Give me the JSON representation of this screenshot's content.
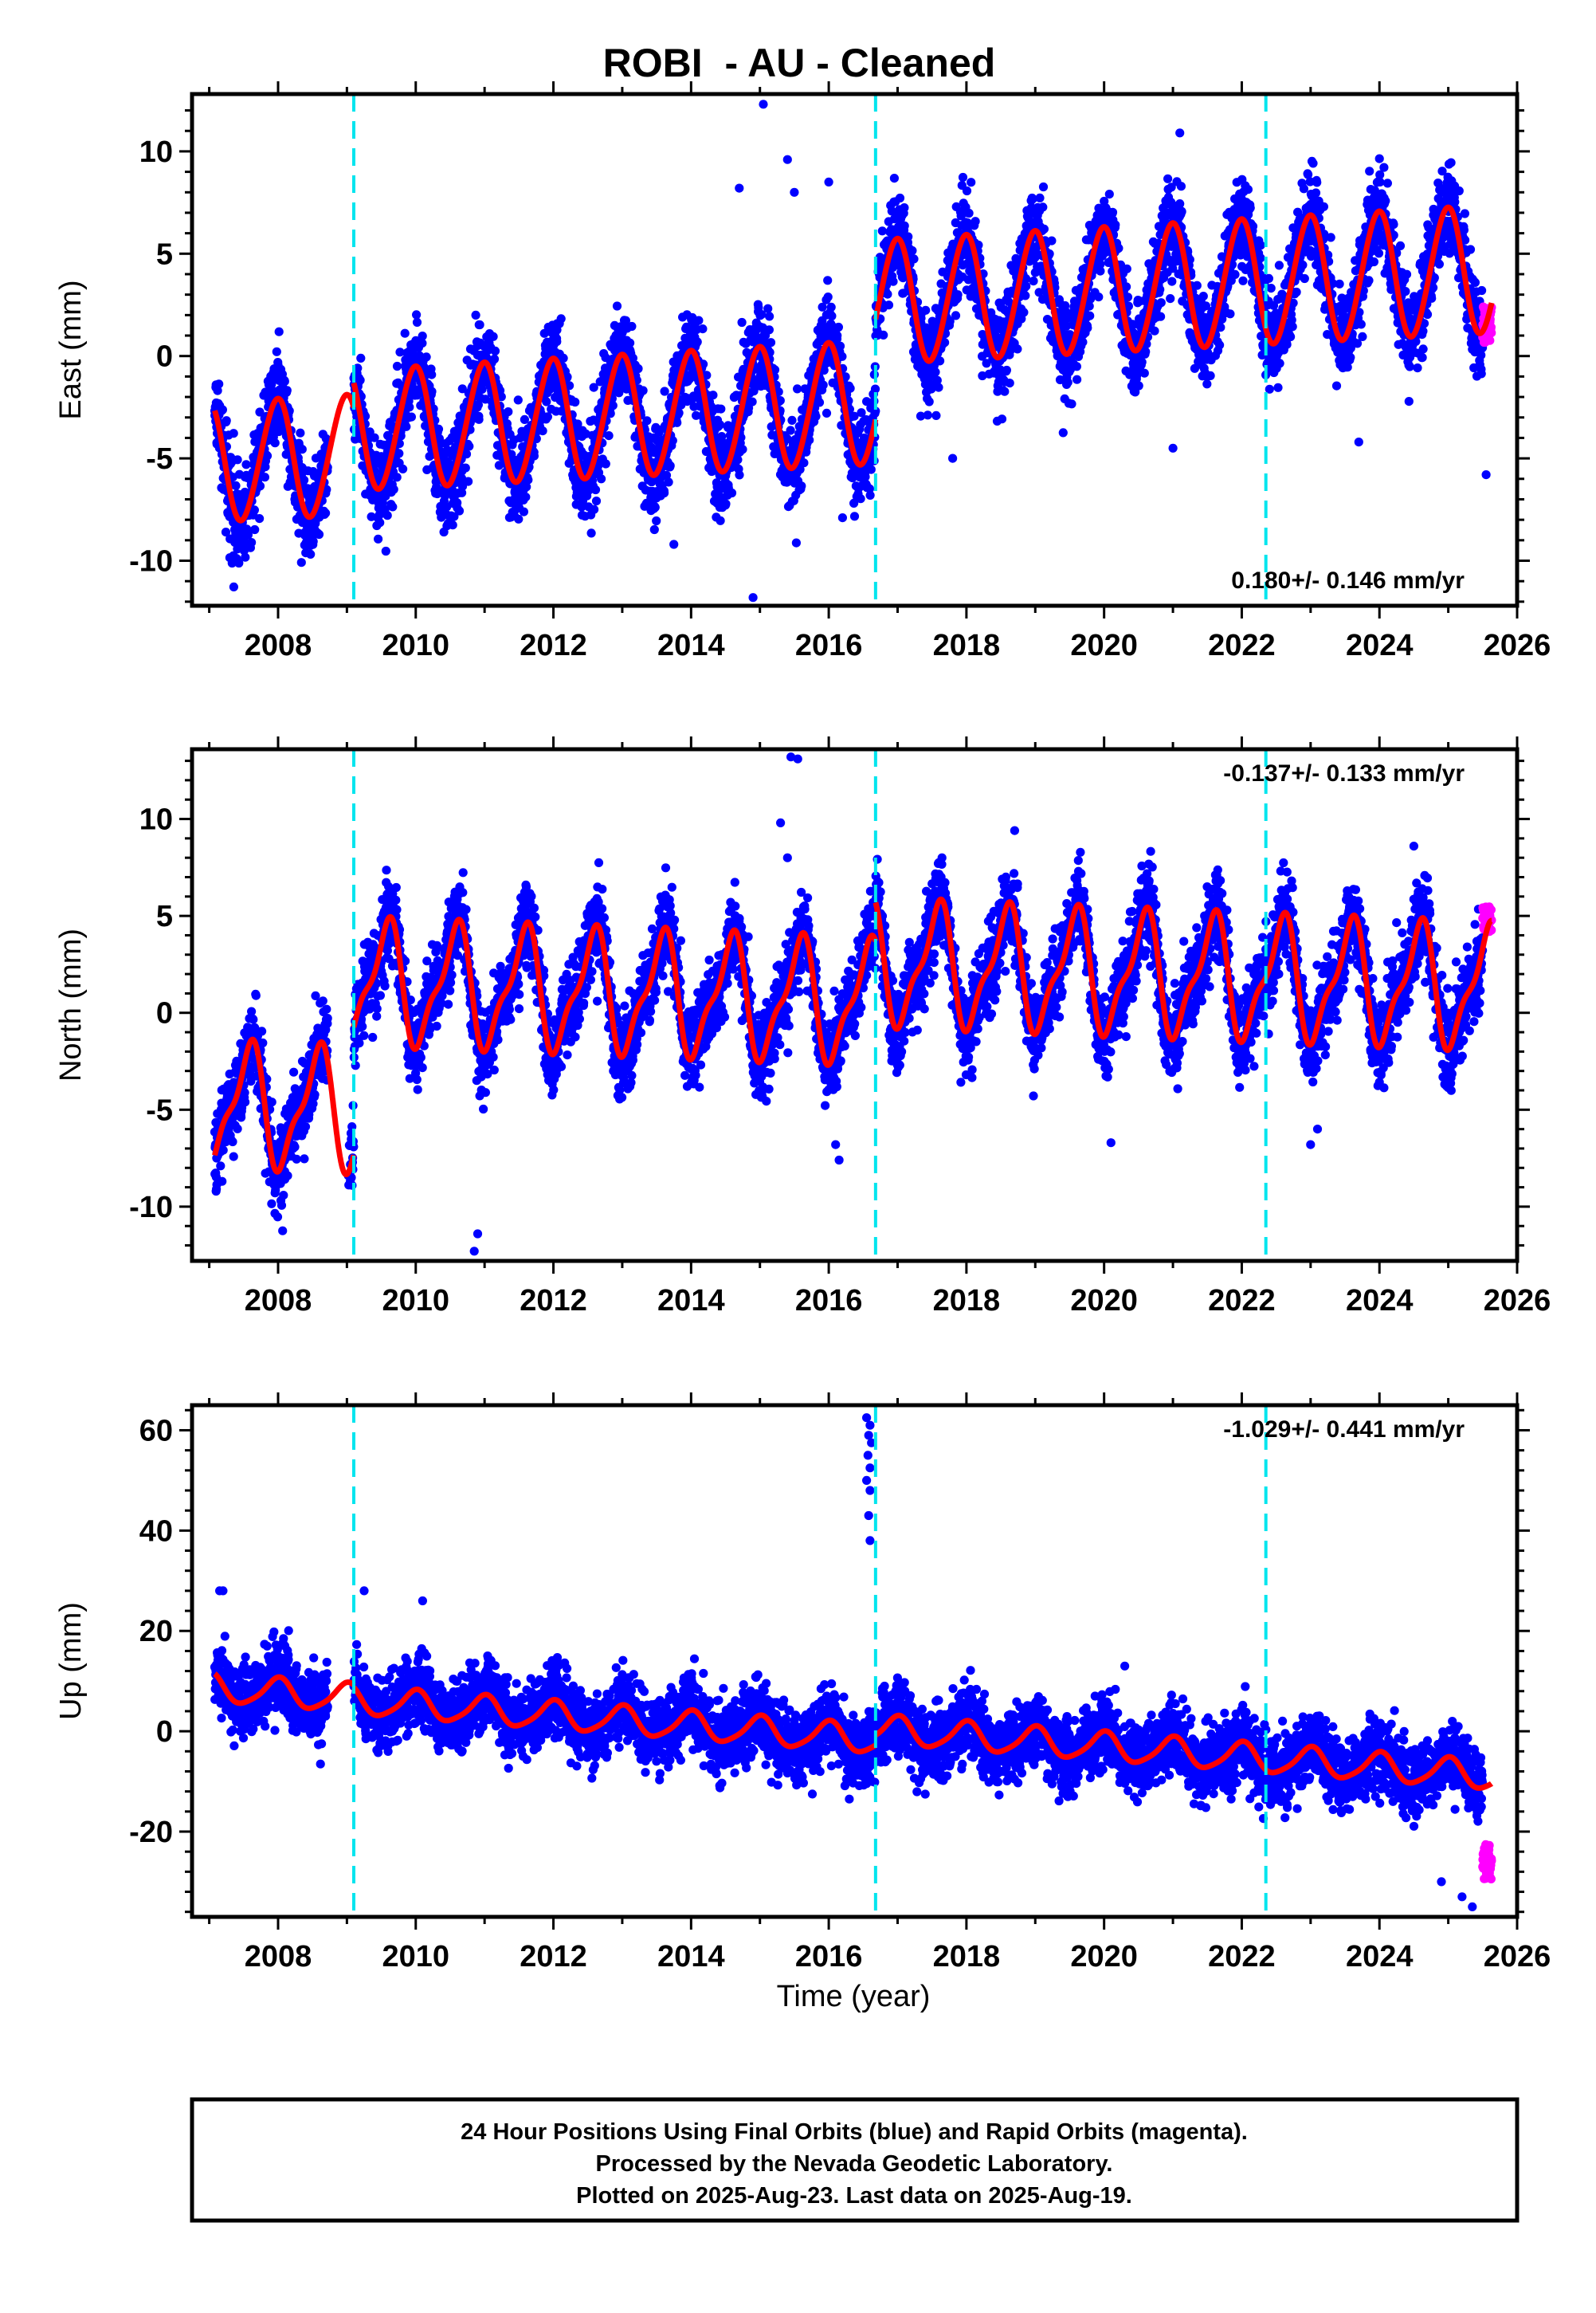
{
  "figure": {
    "title": "ROBI  - AU - Cleaned",
    "xlabel": "Time (year)",
    "footer_lines": [
      "24 Hour Positions Using Final Orbits (blue) and Rapid Orbits (magenta).",
      "Processed by the Nevada Geodetic Laboratory.",
      "Plotted on 2025-Aug-23. Last data on 2025-Aug-19."
    ]
  },
  "colors": {
    "final_orbits": "#0000ff",
    "rapid_orbits": "#ff00ff",
    "model_fit": "#ff0000",
    "offset_lines": "#00e5ee",
    "frame": "#000000"
  },
  "chart_data": [
    {
      "type": "scatter",
      "component": "East",
      "ylabel": "East (mm)",
      "xlim": [
        2006.75,
        2026.0
      ],
      "ylim": [
        -12.2,
        12.8
      ],
      "xticks": [
        2008,
        2010,
        2012,
        2014,
        2016,
        2018,
        2020,
        2022,
        2024,
        2026
      ],
      "yticks": [
        -10,
        -5,
        0,
        5,
        10
      ],
      "rate_text": "0.180+/- 0.146 mm/yr",
      "rate_position": "bottom-right",
      "offset_epochs": [
        2009.1,
        2016.68,
        2022.35
      ],
      "data_span": [
        2007.08,
        2025.5
      ],
      "gap": [
        2008.72,
        2009.1
      ],
      "model": {
        "segments": [
          {
            "from": 2007.08,
            "to": 2009.1,
            "offset": -3.6
          },
          {
            "from": 2009.1,
            "to": 2016.68,
            "offset": -2.4
          },
          {
            "from": 2016.68,
            "to": 2025.63,
            "offset": 2.5
          }
        ],
        "trend_mm_per_yr": 0.18,
        "reference_year": 2016.0,
        "annual_amplitude": 3.0,
        "annual_phase": 1.7,
        "semiannual_amplitude": 0.2,
        "semiannual_phase": 0.4
      },
      "scatter_sd": 1.1,
      "annual_amplitude_ramp": [
        2.9,
        3.1
      ],
      "rapid_orbits": {
        "from": 2025.5,
        "to": 2025.63,
        "center": 1.5,
        "spread": 1.8
      },
      "outliers": [
        [
          2015.05,
          12.3
        ],
        [
          2015.4,
          9.6
        ],
        [
          2014.7,
          8.2
        ],
        [
          2015.5,
          8.0
        ],
        [
          2021.1,
          10.9
        ],
        [
          2016.0,
          8.5
        ],
        [
          2014.9,
          -11.8
        ],
        [
          2013.75,
          -9.2
        ],
        [
          2016.2,
          -7.9
        ],
        [
          2007.5,
          -9.3
        ],
        [
          2025.55,
          -5.8
        ],
        [
          2021.0,
          -4.5
        ],
        [
          2017.8,
          -5.0
        ],
        [
          2023.7,
          -4.2
        ]
      ]
    },
    {
      "type": "scatter",
      "component": "North",
      "ylabel": "North (mm)",
      "xlim": [
        2006.75,
        2026.0
      ],
      "ylim": [
        -12.8,
        13.6
      ],
      "xticks": [
        2008,
        2010,
        2012,
        2014,
        2016,
        2018,
        2020,
        2022,
        2024,
        2026
      ],
      "yticks": [
        -10,
        -5,
        0,
        5,
        10
      ],
      "rate_text": "-0.137+/- 0.133 mm/yr",
      "rate_position": "top-right",
      "offset_epochs": [
        2009.1,
        2016.68,
        2022.35
      ],
      "data_span": [
        2007.08,
        2025.5
      ],
      "gap": [
        2008.72,
        2009.02
      ],
      "model": {
        "segments": [
          {
            "from": 2007.08,
            "to": 2009.1,
            "offset": -6.0
          },
          {
            "from": 2009.1,
            "to": 2016.68,
            "offset": 0.6
          },
          {
            "from": 2016.68,
            "to": 2025.63,
            "offset": 2.6
          }
        ],
        "trend_mm_per_yr": -0.137,
        "reference_year": 2016.0,
        "annual_amplitude": 2.9,
        "annual_phase": 4.3,
        "semiannual_amplitude": 1.0,
        "semiannual_phase": 5.6
      },
      "scatter_sd": 1.05,
      "annual_amplitude_ramp": [
        2.9,
        2.9
      ],
      "rapid_orbits": {
        "from": 2025.5,
        "to": 2025.63,
        "center": 4.8,
        "spread": 1.5
      },
      "outliers": [
        [
          2015.45,
          13.2
        ],
        [
          2015.55,
          13.1
        ],
        [
          2015.3,
          9.8
        ],
        [
          2015.4,
          8.0
        ],
        [
          2010.85,
          -12.3
        ],
        [
          2010.9,
          -11.4
        ],
        [
          2016.15,
          -7.6
        ],
        [
          2016.1,
          -6.8
        ],
        [
          2020.1,
          -6.7
        ],
        [
          2023.0,
          -6.8
        ],
        [
          2023.1,
          -6.0
        ],
        [
          2018.7,
          9.4
        ],
        [
          2024.5,
          8.6
        ]
      ]
    },
    {
      "type": "scatter",
      "component": "Up",
      "ylabel": "Up (mm)",
      "xlim": [
        2006.75,
        2026.0
      ],
      "ylim": [
        -37.0,
        65.0
      ],
      "xticks": [
        2008,
        2010,
        2012,
        2014,
        2016,
        2018,
        2020,
        2022,
        2024,
        2026
      ],
      "yticks": [
        -20,
        0,
        20,
        40,
        60
      ],
      "rate_text": "-1.029+/- 0.441 mm/yr",
      "rate_position": "top-right",
      "offset_epochs": [
        2009.1,
        2016.68,
        2022.35
      ],
      "data_span": [
        2007.08,
        2025.5
      ],
      "gap": [
        2008.72,
        2009.1
      ],
      "model": {
        "segments": [
          {
            "from": 2007.08,
            "to": 2009.1,
            "offset": -0.6
          },
          {
            "from": 2009.1,
            "to": 2016.68,
            "offset": -1.0
          },
          {
            "from": 2016.68,
            "to": 2025.63,
            "offset": 1.0
          }
        ],
        "trend_mm_per_yr": -1.029,
        "reference_year": 2016.0,
        "annual_amplitude": 2.8,
        "annual_phase": 1.6,
        "semiannual_amplitude": 0.5,
        "semiannual_phase": 0.8
      },
      "scatter_sd": 3.4,
      "annual_amplitude_ramp": [
        2.8,
        2.8
      ],
      "rapid_orbits": {
        "from": 2025.5,
        "to": 2025.63,
        "center": -26.0,
        "spread": 7.0
      },
      "outliers": [
        [
          2016.55,
          62.5
        ],
        [
          2016.6,
          61.0
        ],
        [
          2016.58,
          59.0
        ],
        [
          2016.62,
          57.5
        ],
        [
          2016.57,
          55.0
        ],
        [
          2016.6,
          52.5
        ],
        [
          2016.55,
          50.0
        ],
        [
          2016.6,
          48.0
        ],
        [
          2016.58,
          43.0
        ],
        [
          2016.6,
          38.0
        ],
        [
          2007.15,
          28.0
        ],
        [
          2007.2,
          28.0
        ],
        [
          2009.25,
          28.0
        ],
        [
          2010.1,
          26.0
        ],
        [
          2020.3,
          13.0
        ],
        [
          2025.35,
          -35.0
        ],
        [
          2025.2,
          -33.0
        ],
        [
          2024.9,
          -30.0
        ]
      ]
    }
  ]
}
